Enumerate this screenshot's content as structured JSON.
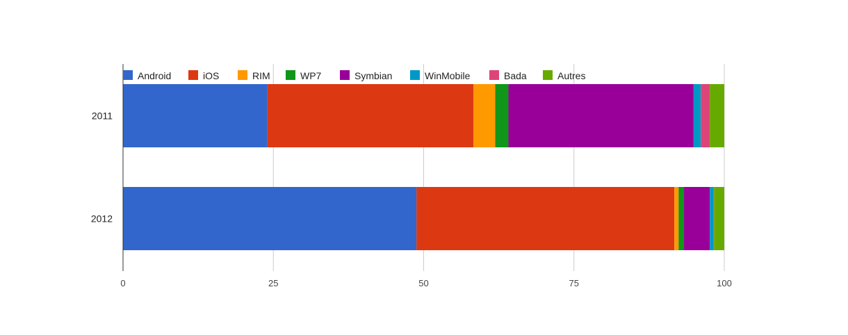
{
  "chart_data": {
    "type": "bar",
    "orientation": "horizontal",
    "stacked": true,
    "categories": [
      "2011",
      "2012"
    ],
    "series": [
      {
        "name": "Android",
        "values": [
          24,
          48.8
        ],
        "color": "#3366cc"
      },
      {
        "name": "iOS",
        "values": [
          34.3,
          42.9
        ],
        "color": "#dc3912"
      },
      {
        "name": "RIM",
        "values": [
          3.6,
          0.7
        ],
        "color": "#ff9900"
      },
      {
        "name": "WP7",
        "values": [
          2.2,
          0.9
        ],
        "color": "#109618"
      },
      {
        "name": "Symbian",
        "values": [
          30.8,
          4.3
        ],
        "color": "#990099"
      },
      {
        "name": "WinMobile",
        "values": [
          1.2,
          0.6
        ],
        "color": "#0099c6"
      },
      {
        "name": "Bada",
        "values": [
          1.5,
          0.1
        ],
        "color": "#dd4477"
      },
      {
        "name": "Autres",
        "values": [
          2.4,
          1.7
        ],
        "color": "#66aa00"
      }
    ],
    "xlim": [
      0,
      100
    ],
    "xticks": [
      "0",
      "25",
      "50",
      "75",
      "100"
    ],
    "grid": true,
    "legend_position": "top-left"
  }
}
